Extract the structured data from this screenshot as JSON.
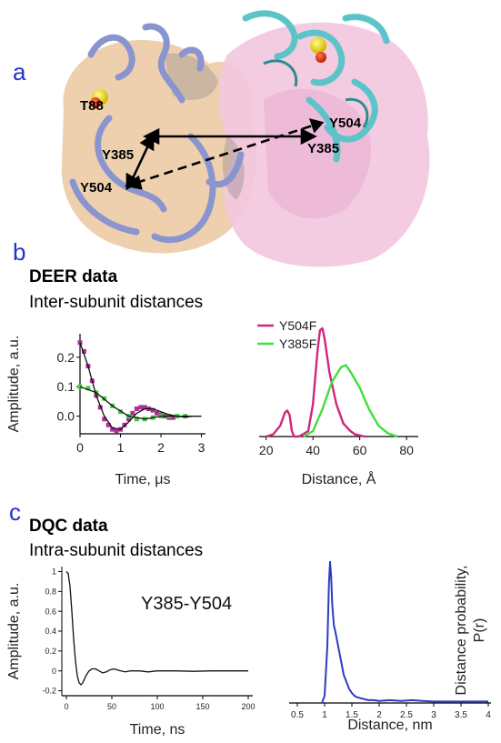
{
  "panels": {
    "a": {
      "letter": "a",
      "labels": {
        "t88": "T88",
        "y504_right": "Y504",
        "y385_left": "Y385",
        "y385_right": "Y385",
        "y504_left": "Y504"
      },
      "colors": {
        "left_cartoon": "#8c96d2",
        "left_surface": "#e9c9a3",
        "right_cartoon": "#5cc4c8",
        "right_surface": "#f0c2dc"
      }
    },
    "b": {
      "letter": "b",
      "title": "DEER data",
      "subtitle": "Inter-subunit distances"
    },
    "c": {
      "letter": "c",
      "title": "DQC data",
      "subtitle": "Intra-subunit distances"
    }
  },
  "chart_data": [
    {
      "type": "scatter",
      "xlabel": "Time, μs",
      "ylabel": "Amplitude, a.u.",
      "xticks": [
        0,
        1,
        2,
        3
      ],
      "yticks": [
        0.0,
        0.1,
        0.2
      ],
      "xlim": [
        0,
        3.1
      ],
      "ylim": [
        -0.06,
        0.28
      ],
      "series": [
        {
          "color": "#b02f9a",
          "x": [
            0.0,
            0.1,
            0.2,
            0.3,
            0.4,
            0.5,
            0.6,
            0.7,
            0.8,
            0.9,
            1.0,
            1.1,
            1.2,
            1.3,
            1.4,
            1.5,
            1.6,
            1.7,
            1.8,
            1.9,
            2.0,
            2.1,
            2.2,
            2.3
          ],
          "y": [
            0.25,
            0.22,
            0.17,
            0.12,
            0.07,
            0.03,
            -0.01,
            -0.03,
            -0.045,
            -0.05,
            -0.045,
            -0.03,
            -0.01,
            0.01,
            0.025,
            0.03,
            0.03,
            0.025,
            0.02,
            0.01,
            0.005,
            0.0,
            -0.005,
            -0.005
          ]
        },
        {
          "color": "#3ecf3e",
          "x": [
            0.0,
            0.2,
            0.4,
            0.6,
            0.8,
            1.0,
            1.2,
            1.4,
            1.6,
            1.8,
            2.0,
            2.2,
            2.4,
            2.6
          ],
          "y": [
            0.1,
            0.095,
            0.08,
            0.06,
            0.035,
            0.015,
            0.0,
            -0.01,
            -0.01,
            -0.005,
            0.0,
            0.0,
            0.0,
            0.0
          ]
        },
        {
          "color": "#111111",
          "mode": "line",
          "x": [
            0.0,
            0.2,
            0.4,
            0.6,
            0.8,
            1.0,
            1.2,
            1.4,
            1.6,
            1.8,
            2.0,
            2.2,
            2.4,
            2.6,
            2.8,
            3.0
          ],
          "y": [
            0.25,
            0.17,
            0.07,
            0.0,
            -0.04,
            -0.045,
            -0.02,
            0.01,
            0.025,
            0.025,
            0.015,
            0.005,
            0.0,
            -0.003,
            0.0,
            0.0
          ]
        },
        {
          "color": "#111111",
          "mode": "line",
          "x": [
            0.0,
            0.4,
            0.8,
            1.2,
            1.6,
            2.0,
            2.4,
            2.8,
            3.0
          ],
          "y": [
            0.1,
            0.08,
            0.035,
            0.0,
            -0.01,
            0.0,
            0.0,
            0.0,
            0.0
          ]
        }
      ]
    },
    {
      "type": "line",
      "xlabel": "Distance, Å",
      "xticks": [
        20,
        40,
        60,
        80
      ],
      "xlim": [
        17,
        85
      ],
      "ylim": [
        0,
        1.05
      ],
      "series": [
        {
          "name": "Y504F",
          "color": "#d1267f",
          "x": [
            20,
            23,
            26,
            28,
            29,
            30,
            31,
            32,
            34,
            38,
            40,
            42,
            43,
            44,
            45,
            47,
            50,
            53,
            56,
            58,
            60,
            62
          ],
          "y": [
            0,
            0.02,
            0.1,
            0.22,
            0.24,
            0.2,
            0.05,
            0.0,
            0.0,
            0.05,
            0.3,
            0.8,
            0.98,
            1.0,
            0.9,
            0.6,
            0.3,
            0.12,
            0.05,
            0.02,
            0.01,
            0.0
          ]
        },
        {
          "name": "Y385F",
          "color": "#3ee03e",
          "x": [
            36,
            40,
            44,
            48,
            52,
            54,
            56,
            60,
            64,
            68,
            72,
            76
          ],
          "y": [
            0.0,
            0.05,
            0.25,
            0.5,
            0.64,
            0.66,
            0.6,
            0.45,
            0.25,
            0.1,
            0.03,
            0.0
          ]
        }
      ]
    },
    {
      "type": "line",
      "xlabel": "Time, ns",
      "ylabel": "Amplitude, a.u.",
      "annotation": "Y385-Y504",
      "xticks": [
        0,
        50,
        100,
        150,
        200
      ],
      "yticks": [
        -0.2,
        0,
        0.2,
        0.4,
        0.6,
        0.8,
        1
      ],
      "xlim": [
        -5,
        205
      ],
      "ylim": [
        -0.25,
        1.05
      ],
      "series": [
        {
          "color": "#111111",
          "x": [
            0,
            2,
            4,
            6,
            8,
            10,
            12,
            14,
            16,
            18,
            20,
            22,
            25,
            28,
            32,
            36,
            40,
            44,
            48,
            52,
            56,
            60,
            65,
            70,
            80,
            90,
            100,
            120,
            140,
            160,
            180,
            200
          ],
          "y": [
            1.0,
            0.98,
            0.85,
            0.6,
            0.32,
            0.1,
            -0.05,
            -0.12,
            -0.14,
            -0.12,
            -0.08,
            -0.04,
            0.0,
            0.02,
            0.02,
            0.0,
            -0.02,
            -0.01,
            0.01,
            0.02,
            0.01,
            0.0,
            -0.01,
            0.0,
            0.0,
            -0.01,
            0.0,
            0.0,
            -0.005,
            0.0,
            0.0,
            0.0
          ]
        }
      ]
    },
    {
      "type": "line",
      "xlabel": "Distance, nm",
      "ylabel": "Distance probability, P(r)",
      "xticks": [
        0.5,
        1,
        1.5,
        2,
        2.5,
        3,
        3.5,
        4
      ],
      "xlim": [
        0.35,
        4.05
      ],
      "ylim": [
        0,
        1.05
      ],
      "series": [
        {
          "color": "#2a3cc4",
          "x": [
            0.95,
            1.0,
            1.05,
            1.08,
            1.1,
            1.12,
            1.14,
            1.17,
            1.2,
            1.25,
            1.3,
            1.35,
            1.4,
            1.45,
            1.5,
            1.55,
            1.6,
            1.7,
            1.8,
            1.9,
            2.0,
            2.2,
            2.4,
            2.6,
            2.8,
            3.0,
            3.2,
            3.4,
            3.6,
            3.8,
            4.0
          ],
          "y": [
            0.0,
            0.05,
            0.4,
            0.85,
            1.0,
            0.9,
            0.7,
            0.55,
            0.5,
            0.4,
            0.3,
            0.2,
            0.15,
            0.1,
            0.07,
            0.05,
            0.04,
            0.03,
            0.02,
            0.02,
            0.015,
            0.02,
            0.015,
            0.02,
            0.015,
            0.01,
            0.01,
            0.01,
            0.01,
            0.01,
            0.01
          ]
        }
      ]
    }
  ]
}
